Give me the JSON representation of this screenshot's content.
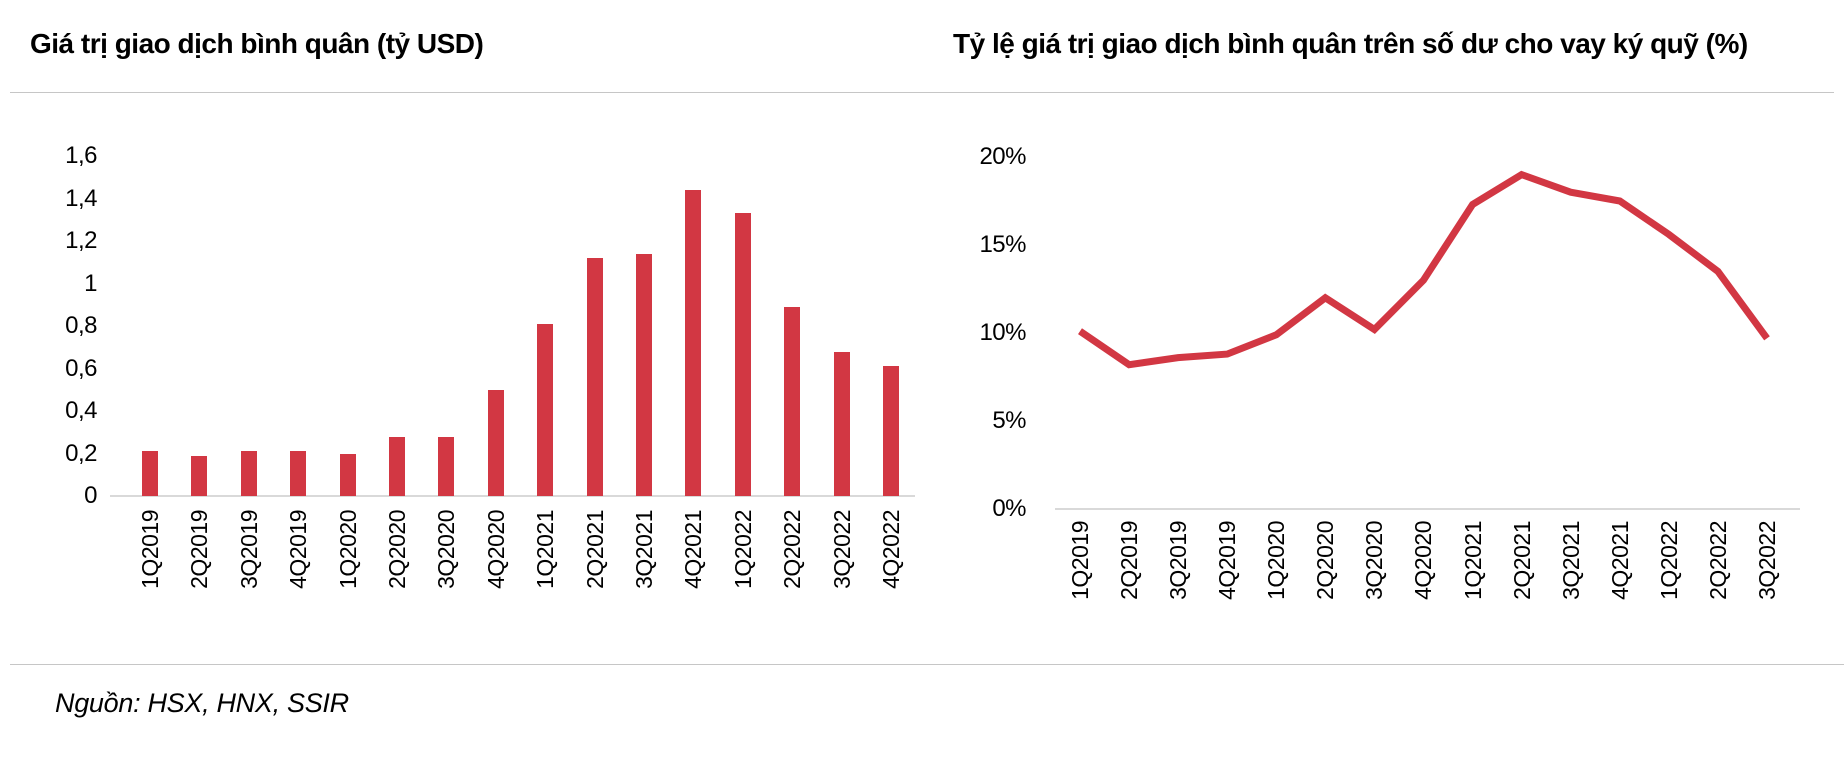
{
  "page": {
    "source_note": "Nguồn: HSX, HNX, SSIR",
    "accent_color": "#D23743"
  },
  "chart_data": [
    {
      "id": "average-trading-value",
      "type": "bar",
      "title": "Giá trị giao dịch bình quân (tỷ USD)",
      "categories": [
        "1Q2019",
        "2Q2019",
        "3Q2019",
        "4Q2019",
        "1Q2020",
        "2Q2020",
        "3Q2020",
        "4Q2020",
        "1Q2021",
        "2Q2021",
        "3Q2021",
        "4Q2021",
        "1Q2022",
        "2Q2022",
        "3Q2022",
        "4Q2022"
      ],
      "values": [
        0.21,
        0.19,
        0.21,
        0.21,
        0.2,
        0.28,
        0.28,
        0.5,
        0.81,
        1.12,
        1.14,
        1.44,
        1.33,
        0.89,
        0.68,
        0.61
      ],
      "y_ticks": [
        "1,6",
        "1,4",
        "1,2",
        "1",
        "0,8",
        "0,6",
        "0,4",
        "0,2",
        "0"
      ],
      "ylim": [
        0,
        1.6
      ],
      "bar_color": "#D23743",
      "grid": false,
      "legend": "none"
    },
    {
      "id": "trading-value-to-margin-balance-ratio",
      "type": "line",
      "title": "Tỷ lệ giá trị giao dịch bình quân trên số dư cho vay ký quỹ (%)",
      "categories": [
        "1Q2019",
        "2Q2019",
        "3Q2019",
        "4Q2019",
        "1Q2020",
        "2Q2020",
        "3Q2020",
        "4Q2020",
        "1Q2021",
        "2Q2021",
        "3Q2021",
        "4Q2021",
        "1Q2022",
        "2Q2022",
        "3Q2022"
      ],
      "values": [
        10.1,
        8.2,
        8.6,
        8.8,
        9.9,
        12.0,
        10.2,
        13.0,
        17.3,
        19.0,
        18.0,
        17.5,
        15.6,
        13.5,
        9.7
      ],
      "y_ticks": [
        "20%",
        "15%",
        "10%",
        "5%",
        "0%"
      ],
      "ylim": [
        0,
        20
      ],
      "line_color": "#D23743",
      "grid": false,
      "legend": "none"
    }
  ]
}
